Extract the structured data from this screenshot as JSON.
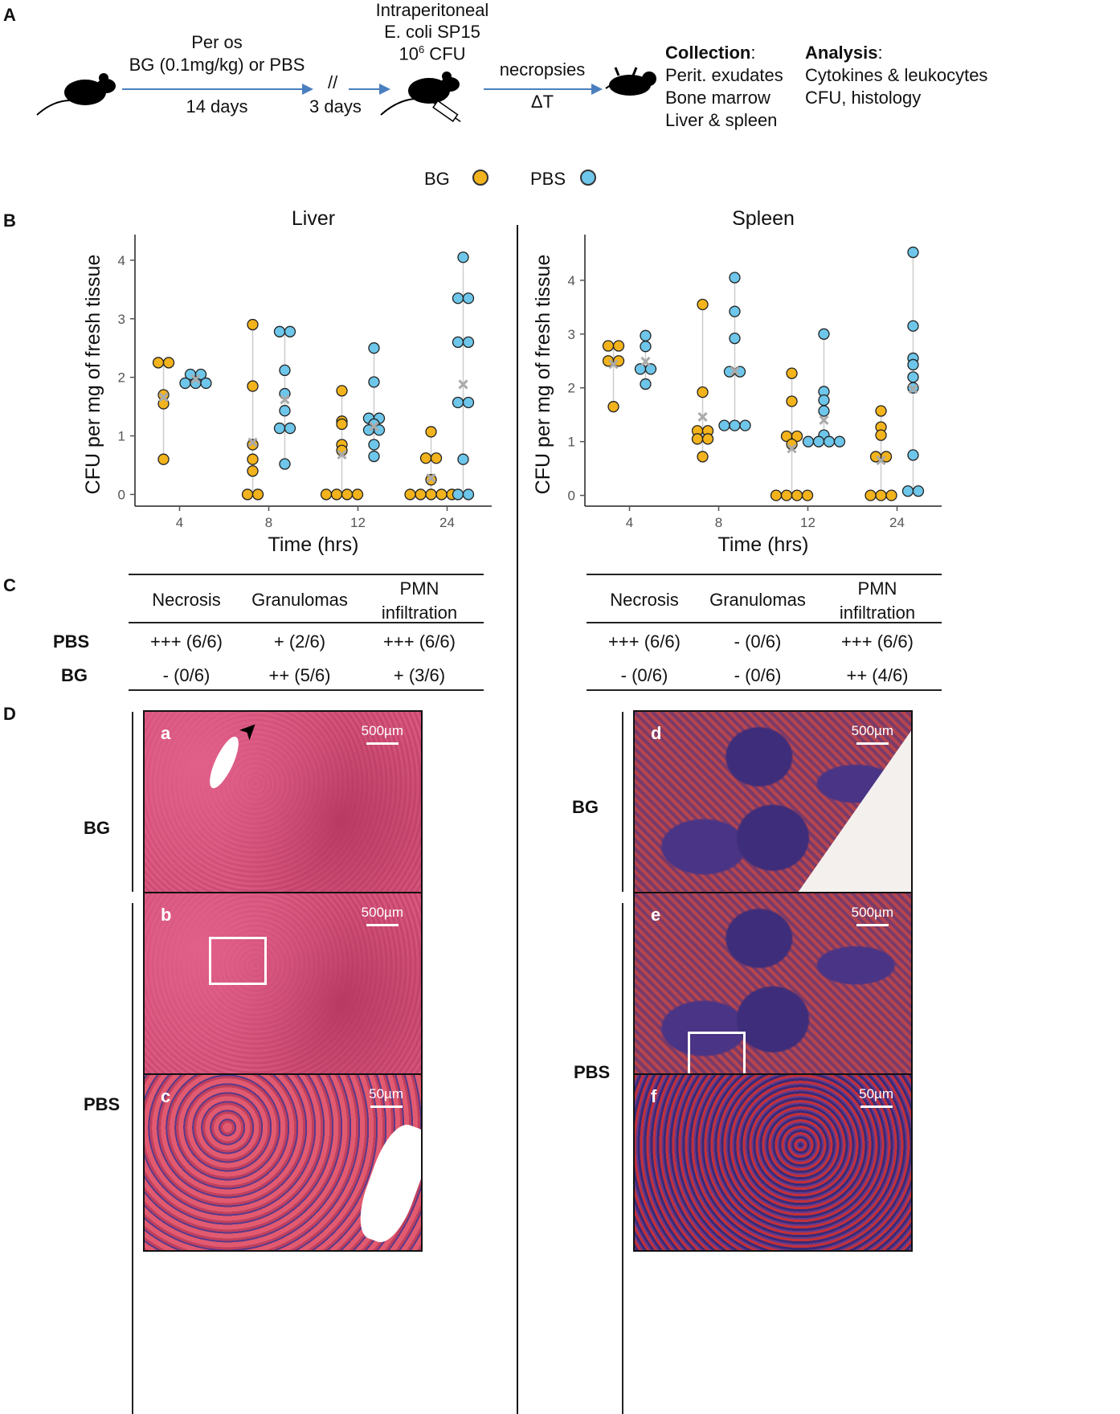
{
  "panels": {
    "A": "A",
    "B": "B",
    "C": "C",
    "D": "D"
  },
  "panel_a": {
    "step1_top1": "Per os",
    "step1_top2": "BG (0.1mg/kg) or PBS",
    "step1_bottom": "14 days",
    "break_mark": "//",
    "step2_bottom": "3 days",
    "infection_line1": "Intraperitoneal",
    "infection_line2": "E. coli SP15",
    "infection_line3_base": "10",
    "infection_line3_sup": "6",
    "infection_line3_rest": " CFU",
    "step3_top": "necropsies",
    "step3_bottom": "ΔT",
    "collection_title": "Collection",
    "collection_colon": ":",
    "collection_items": [
      "Perit. exudates",
      "Bone marrow",
      "Liver & spleen"
    ],
    "analysis_title": "Analysis",
    "analysis_colon": ":",
    "analysis_items": [
      "Cytokines & leukocytes",
      "CFU, histology"
    ]
  },
  "legend": {
    "items": [
      {
        "label": "BG",
        "color": "#f2b31c"
      },
      {
        "label": "PBS",
        "color": "#6ec6ea"
      }
    ]
  },
  "colors": {
    "bg": "#f2b31c",
    "pbs": "#6ec6ea",
    "mean": "#aaaaaa"
  },
  "chart_data": [
    {
      "type": "scatter",
      "title": "Liver",
      "xlabel": "Time (hrs)",
      "ylabel": "CFU per mg of fresh tissue",
      "categories": [
        "4",
        "8",
        "12",
        "24"
      ],
      "ylim": [
        -0.2,
        4.3
      ],
      "yticks": [
        0,
        1,
        2,
        3,
        4
      ],
      "series": [
        {
          "name": "BG",
          "points": [
            [
              2.25,
              2.25,
              1.7,
              1.55,
              0.6
            ],
            [
              2.9,
              1.85,
              0.85,
              0.6,
              0.4,
              0,
              0
            ],
            [
              1.77,
              1.25,
              1.2,
              0.85,
              0.75,
              0,
              0,
              0,
              0
            ],
            [
              1.07,
              0.62,
              0.62,
              0.25,
              0,
              0,
              0,
              0,
              0
            ]
          ],
          "means": [
            1.66,
            0.89,
            0.68,
            0.28
          ]
        },
        {
          "name": "PBS",
          "points": [
            [
              2.05,
              2.05,
              1.9,
              1.9,
              1.9
            ],
            [
              2.78,
              2.78,
              2.12,
              1.72,
              1.43,
              1.13,
              1.13,
              0.52
            ],
            [
              2.5,
              1.92,
              1.3,
              1.3,
              1.2,
              1.1,
              1.1,
              0.85,
              0.65
            ],
            [
              4.05,
              3.35,
              3.35,
              2.6,
              2.6,
              1.57,
              1.57,
              0.6,
              0,
              0
            ]
          ],
          "means": [
            1.97,
            1.62,
            1.16,
            1.88
          ]
        }
      ]
    },
    {
      "type": "scatter",
      "title": "Spleen",
      "xlabel": "Time (hrs)",
      "ylabel": "CFU per mg of fresh tissue",
      "categories": [
        "4",
        "8",
        "12",
        "24"
      ],
      "ylim": [
        -0.2,
        4.7
      ],
      "yticks": [
        0,
        1,
        2,
        3,
        4
      ],
      "series": [
        {
          "name": "BG",
          "points": [
            [
              2.78,
              2.78,
              2.5,
              2.5,
              1.65
            ],
            [
              3.55,
              1.92,
              1.2,
              1.2,
              1.05,
              1.05,
              0.72
            ],
            [
              2.27,
              1.75,
              1.1,
              1.1,
              0.95,
              0,
              0,
              0,
              0
            ],
            [
              1.57,
              1.27,
              1.12,
              0.72,
              0.72,
              0,
              0,
              0
            ]
          ],
          "means": [
            2.44,
            1.46,
            0.87,
            0.65
          ]
        },
        {
          "name": "PBS",
          "points": [
            [
              2.97,
              2.77,
              2.35,
              2.35,
              2.07
            ],
            [
              4.05,
              3.42,
              2.92,
              2.3,
              2.3,
              1.3,
              1.3,
              1.3
            ],
            [
              3.0,
              1.93,
              1.77,
              1.57,
              1.12,
              1.0,
              1.0,
              1.0,
              1.0
            ],
            [
              4.52,
              3.15,
              2.55,
              2.43,
              2.2,
              2.0,
              0.75,
              0.08,
              0.08
            ]
          ],
          "means": [
            2.49,
            2.31,
            1.4,
            1.98
          ]
        }
      ]
    }
  ],
  "table_c": {
    "headers": [
      "Necrosis",
      "Granulomas",
      "PMN",
      "infiltration"
    ],
    "liver": {
      "rows": [
        {
          "label": "PBS",
          "cells": [
            "+++ (6/6)",
            "+ (2/6)",
            "+++ (6/6)"
          ]
        },
        {
          "label": "BG",
          "cells": [
            "- (0/6)",
            "++ (5/6)",
            "+ (3/6)"
          ]
        }
      ]
    },
    "spleen": {
      "rows": [
        {
          "cells": [
            "+++ (6/6)",
            "- (0/6)",
            "+++ (6/6)"
          ]
        },
        {
          "cells": [
            "- (0/6)",
            "- (0/6)",
            "++ (4/6)"
          ]
        }
      ]
    }
  },
  "panel_d": {
    "left_labels": {
      "bg": "BG",
      "pbs": "PBS"
    },
    "right_labels": {
      "bg": "BG",
      "pbs": "PBS"
    },
    "images": [
      {
        "id": "a",
        "scale": "500µm"
      },
      {
        "id": "b",
        "scale": "500µm"
      },
      {
        "id": "c",
        "scale": "50µm"
      },
      {
        "id": "d",
        "scale": "500µm"
      },
      {
        "id": "e",
        "scale": "500µm"
      },
      {
        "id": "f",
        "scale": "50µm"
      }
    ]
  }
}
